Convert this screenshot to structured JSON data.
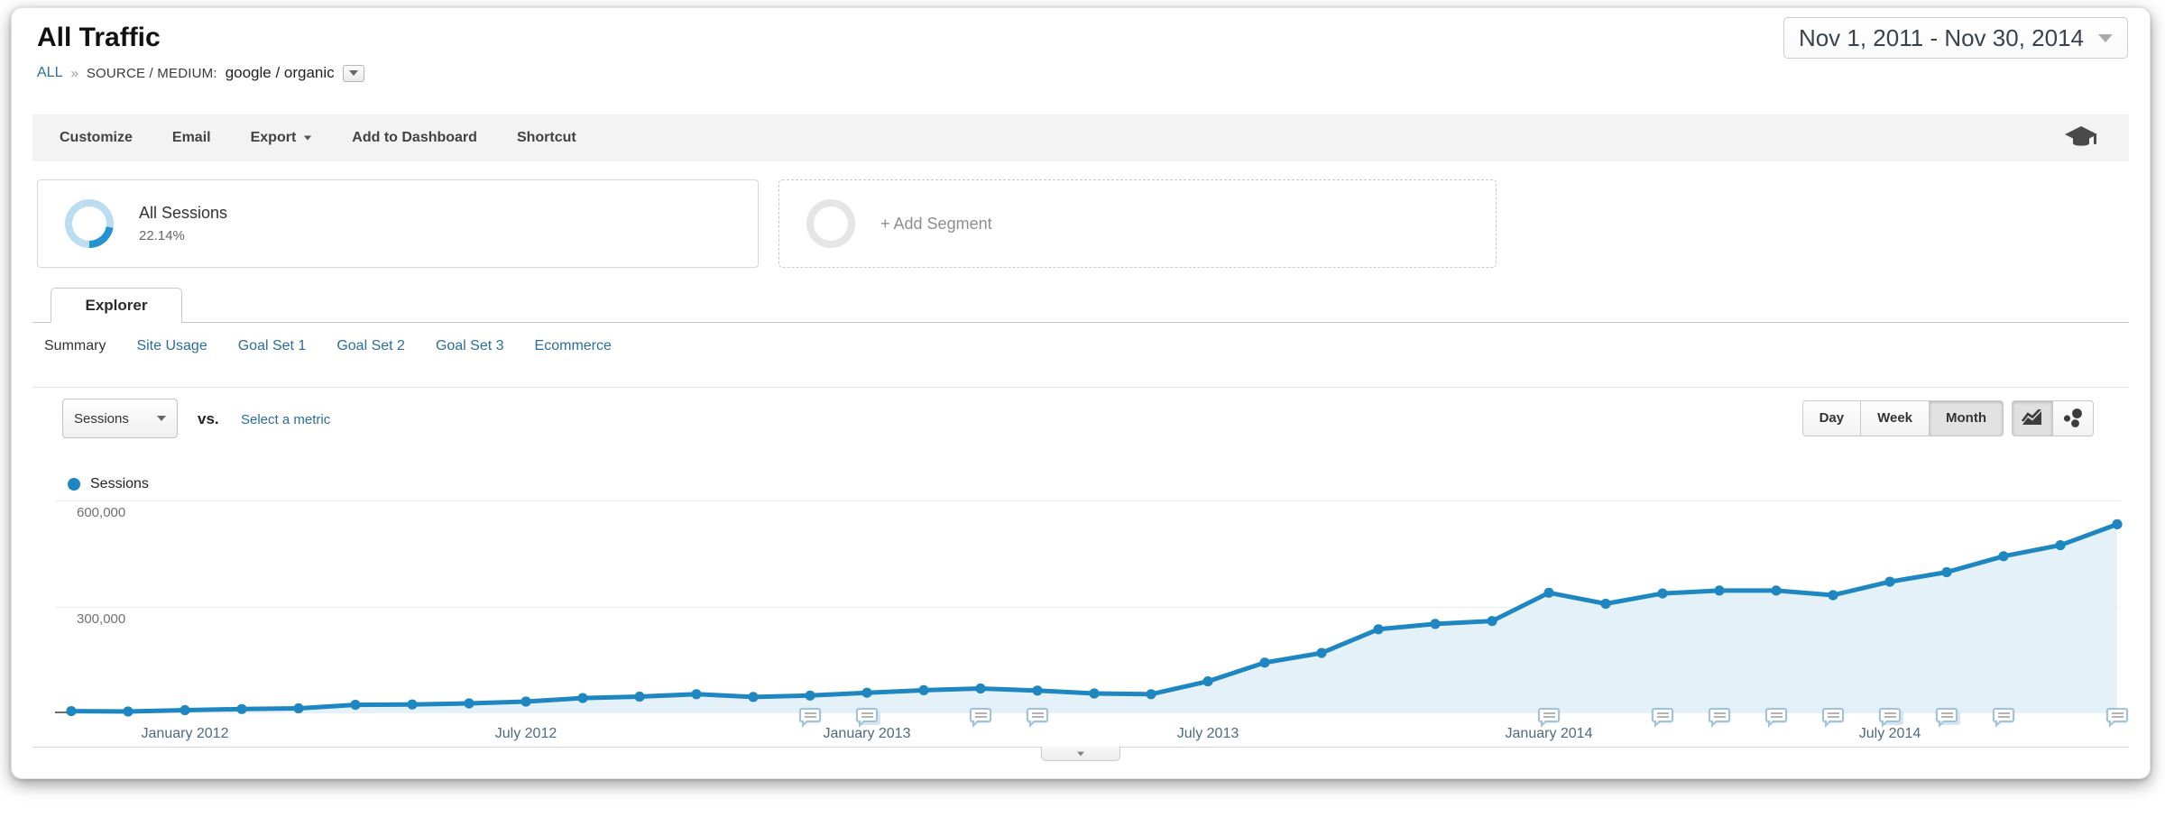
{
  "header": {
    "title": "All Traffic",
    "breadcrumb": {
      "root": "ALL",
      "separator": "»",
      "dimension": "SOURCE / MEDIUM:",
      "value": "google / organic"
    },
    "date_range": "Nov 1, 2011 - Nov 30, 2014"
  },
  "toolbar": {
    "items": [
      {
        "label": "Customize"
      },
      {
        "label": "Email"
      },
      {
        "label": "Export",
        "has_dropdown": true
      },
      {
        "label": "Add to Dashboard"
      },
      {
        "label": "Shortcut"
      }
    ],
    "education_icon": "graduation-cap"
  },
  "segments": {
    "all_sessions": {
      "label": "All Sessions",
      "percent": "22.14%",
      "donut_percent": 22.14
    },
    "add_segment": {
      "label": "+ Add Segment"
    }
  },
  "tabs": {
    "explorer": "Explorer"
  },
  "subtabs": {
    "items": [
      {
        "label": "Summary",
        "active": true
      },
      {
        "label": "Site Usage"
      },
      {
        "label": "Goal Set 1"
      },
      {
        "label": "Goal Set 2"
      },
      {
        "label": "Goal Set 3"
      },
      {
        "label": "Ecommerce"
      }
    ]
  },
  "controls": {
    "metric_selector": "Sessions",
    "vs_label": "vs.",
    "select_metric": "Select a metric",
    "granularity": [
      {
        "label": "Day"
      },
      {
        "label": "Week"
      },
      {
        "label": "Month",
        "active": true
      }
    ],
    "chart_type_icons": [
      "area-chart",
      "motion-bubble-chart"
    ]
  },
  "legend": {
    "series": "Sessions"
  },
  "colors": {
    "series": "#1e86c0",
    "area_fill": "#e5f1f8",
    "link": "#2a6d9e"
  },
  "chart_data": {
    "type": "area",
    "title": "Sessions by month",
    "series_name": "Sessions",
    "x": [
      "Nov 2011",
      "Dec 2011",
      "Jan 2012",
      "Feb 2012",
      "Mar 2012",
      "Apr 2012",
      "May 2012",
      "Jun 2012",
      "Jul 2012",
      "Aug 2012",
      "Sep 2012",
      "Oct 2012",
      "Nov 2012",
      "Dec 2012",
      "Jan 2013",
      "Feb 2013",
      "Mar 2013",
      "Apr 2013",
      "May 2013",
      "Jun 2013",
      "Jul 2013",
      "Aug 2013",
      "Sep 2013",
      "Oct 2013",
      "Nov 2013",
      "Dec 2013",
      "Jan 2014",
      "Feb 2014",
      "Mar 2014",
      "Apr 2014",
      "May 2014",
      "Jun 2014",
      "Jul 2014",
      "Aug 2014",
      "Sep 2014",
      "Oct 2014",
      "Nov 2014"
    ],
    "values": [
      6000,
      5000,
      9000,
      12000,
      14000,
      24000,
      25000,
      28000,
      33000,
      43000,
      47000,
      54000,
      46000,
      50000,
      58000,
      65000,
      70000,
      64000,
      56000,
      54000,
      90000,
      143000,
      170000,
      237000,
      252000,
      260000,
      340000,
      309000,
      338000,
      346000,
      346000,
      333000,
      371000,
      398000,
      443000,
      474000,
      533000
    ],
    "ylim": [
      0,
      620000
    ],
    "grid": true,
    "legend_position": "top-left",
    "y_ticks": [
      {
        "value": 600000,
        "label": "600,000"
      },
      {
        "value": 300000,
        "label": "300,000"
      }
    ],
    "x_ticks": [
      {
        "index": 2,
        "label": "January 2012"
      },
      {
        "index": 8,
        "label": "July 2012"
      },
      {
        "index": 14,
        "label": "January 2013"
      },
      {
        "index": 20,
        "label": "July 2013"
      },
      {
        "index": 26,
        "label": "January 2014"
      },
      {
        "index": 32,
        "label": "July 2014"
      }
    ],
    "annotation_flags": [
      {
        "month": "Dec 2012",
        "index": 13
      },
      {
        "month": "Jan 2013",
        "index": 14,
        "stacked": true
      },
      {
        "month": "Mar 2013",
        "index": 16
      },
      {
        "month": "Apr 2013",
        "index": 17
      },
      {
        "month": "Jan 2014",
        "index": 26
      },
      {
        "month": "Mar 2014",
        "index": 28
      },
      {
        "month": "Apr 2014",
        "index": 29
      },
      {
        "month": "May 2014",
        "index": 30
      },
      {
        "month": "Jun 2014",
        "index": 31
      },
      {
        "month": "Jul 2014",
        "index": 32,
        "stacked": true
      },
      {
        "month": "Aug 2014",
        "index": 33,
        "stacked": true
      },
      {
        "month": "Sep 2014",
        "index": 34
      },
      {
        "month": "Nov 2014",
        "index": 36
      }
    ]
  }
}
